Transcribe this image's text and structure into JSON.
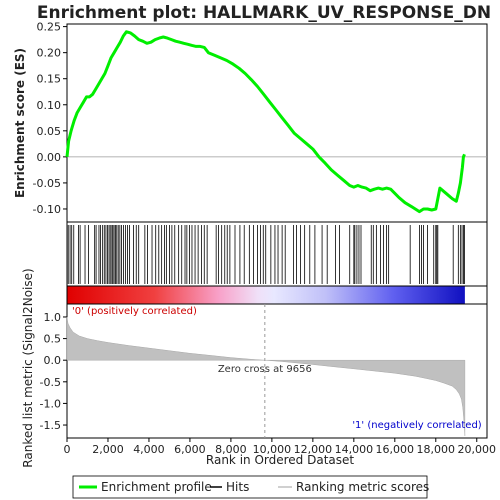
{
  "chart_data": {
    "type": "line",
    "title": "Enrichment plot: HALLMARK_UV_RESPONSE_DN",
    "top_panel": {
      "ylabel": "Enrichment score (ES)",
      "ylim": [
        -0.125,
        0.255
      ],
      "yticks": [
        -0.1,
        -0.05,
        0.0,
        0.05,
        0.1,
        0.15,
        0.2,
        0.25
      ],
      "ytick_labels": [
        "-0.10",
        "-0.05",
        "0.00",
        "0.05",
        "0.10",
        "0.15",
        "0.20",
        "0.25"
      ],
      "series": [
        {
          "name": "Enrichment profile",
          "color": "#00ee00",
          "x": [
            0,
            80,
            200,
            350,
            500,
            650,
            800,
            950,
            1100,
            1250,
            1400,
            1550,
            1700,
            1850,
            2000,
            2150,
            2300,
            2450,
            2600,
            2750,
            2900,
            3100,
            3300,
            3500,
            3700,
            3900,
            4100,
            4300,
            4500,
            4700,
            4900,
            5100,
            5300,
            5500,
            5700,
            5900,
            6100,
            6300,
            6500,
            6700,
            6900,
            7200,
            7500,
            7800,
            8100,
            8400,
            8700,
            9000,
            9300,
            9600,
            9900,
            10200,
            10500,
            10800,
            11100,
            11400,
            11700,
            12000,
            12300,
            12600,
            12900,
            13200,
            13500,
            13800,
            14000,
            14200,
            14400,
            14600,
            14800,
            15000,
            15200,
            15400,
            15600,
            15800,
            16000,
            16200,
            16500,
            16800,
            17000,
            17200,
            17400,
            17600,
            17800,
            18000,
            18200,
            18500,
            18800,
            19000,
            19100,
            19200,
            19300,
            19350,
            19400
          ],
          "y": [
            0.0,
            0.03,
            0.05,
            0.07,
            0.085,
            0.095,
            0.105,
            0.115,
            0.115,
            0.12,
            0.13,
            0.14,
            0.15,
            0.16,
            0.175,
            0.19,
            0.2,
            0.21,
            0.22,
            0.232,
            0.24,
            0.238,
            0.232,
            0.225,
            0.222,
            0.218,
            0.22,
            0.225,
            0.228,
            0.23,
            0.228,
            0.225,
            0.222,
            0.22,
            0.218,
            0.216,
            0.214,
            0.212,
            0.212,
            0.21,
            0.2,
            0.195,
            0.19,
            0.185,
            0.178,
            0.17,
            0.16,
            0.148,
            0.135,
            0.12,
            0.105,
            0.09,
            0.075,
            0.06,
            0.045,
            0.035,
            0.025,
            0.015,
            0.0,
            -0.012,
            -0.025,
            -0.035,
            -0.045,
            -0.055,
            -0.058,
            -0.055,
            -0.058,
            -0.06,
            -0.065,
            -0.062,
            -0.06,
            -0.062,
            -0.06,
            -0.062,
            -0.07,
            -0.078,
            -0.088,
            -0.095,
            -0.1,
            -0.105,
            -0.1,
            -0.1,
            -0.102,
            -0.1,
            -0.06,
            -0.07,
            -0.08,
            -0.085,
            -0.07,
            -0.05,
            -0.02,
            0.0,
            0.005
          ]
        }
      ]
    },
    "hits_panel": {
      "legend_name": "Hits",
      "hit_positions": [
        60,
        150,
        230,
        330,
        560,
        640,
        880,
        1050,
        1350,
        1420,
        1560,
        1640,
        1740,
        1820,
        1900,
        1980,
        2050,
        2110,
        2190,
        2240,
        2300,
        2370,
        2430,
        2500,
        2580,
        2660,
        2760,
        2850,
        2950,
        3050,
        3250,
        3380,
        3500,
        3800,
        3930,
        4150,
        4330,
        4480,
        4620,
        4760,
        4850,
        5000,
        5120,
        5260,
        5450,
        5600,
        5760,
        5850,
        5980,
        6100,
        6250,
        6400,
        6560,
        6700,
        6840,
        7280,
        7400,
        7550,
        7700,
        7820,
        7950,
        8200,
        8440,
        8650,
        8900,
        9100,
        9300,
        9450,
        9580,
        9700,
        9950,
        10150,
        10300,
        10500,
        10650,
        11050,
        11200,
        11400,
        11600,
        11850,
        12100,
        12450,
        12700,
        13100,
        13300,
        13800,
        14000,
        14050,
        14150,
        14250,
        14350,
        14850,
        14950,
        15100,
        15300,
        15450,
        15600,
        15700,
        16750,
        17200,
        17300,
        17400,
        17600,
        17900,
        18000,
        18050,
        18100,
        18850,
        19100,
        19200,
        19280,
        19350,
        19400
      ]
    },
    "ranking_panel": {
      "ylabel": "Ranked list metric (Signal2Noise)",
      "legend_name": "Ranking metric scores",
      "ylim": [
        -1.8,
        1.3
      ],
      "yticks": [
        -1.5,
        -1.0,
        -0.5,
        0.0,
        0.5,
        1.0
      ],
      "ytick_labels": [
        "-1.5",
        "-1.0",
        "-0.5",
        "0.0",
        "0.5",
        "1.0"
      ],
      "metric_profile": {
        "x": [
          0,
          50,
          150,
          300,
          600,
          1000,
          1500,
          2000,
          3000,
          4000,
          5000,
          6000,
          7000,
          8000,
          9000,
          9656,
          10500,
          12000,
          13000,
          14000,
          15000,
          16000,
          17000,
          17500,
          18000,
          18400,
          18800,
          19000,
          19150,
          19250,
          19320,
          19380,
          19420
        ],
        "y": [
          1.0,
          0.85,
          0.75,
          0.65,
          0.56,
          0.5,
          0.45,
          0.41,
          0.34,
          0.28,
          0.22,
          0.16,
          0.11,
          0.06,
          0.02,
          0.0,
          -0.03,
          -0.1,
          -0.15,
          -0.2,
          -0.25,
          -0.3,
          -0.37,
          -0.42,
          -0.47,
          -0.53,
          -0.6,
          -0.68,
          -0.78,
          -0.9,
          -1.1,
          -1.45,
          -1.75
        ]
      },
      "zero_cross_label": "Zero cross at 9656",
      "zero_cross_x": 9656,
      "pos_label": "'0' (positively correlated)",
      "neg_label": "'1' (negatively correlated)",
      "pos_color": "#cc0000",
      "neg_color": "#0000cc"
    },
    "xlabel": "Rank in Ordered Dataset",
    "xlim": [
      0,
      20500
    ],
    "xticks": [
      0,
      2000,
      4000,
      6000,
      8000,
      10000,
      12000,
      14000,
      16000,
      18000,
      20000
    ],
    "xtick_labels": [
      "0",
      "2,000",
      "4,000",
      "6,000",
      "8,000",
      "10,000",
      "12,000",
      "14,000",
      "16,000",
      "18,000",
      "20,000"
    ],
    "dataset_size": 19420,
    "grid": false,
    "legend_placement": "bottom",
    "legend": [
      {
        "label": "Enrichment profile",
        "color": "#00ee00"
      },
      {
        "label": "Hits",
        "color": "#000000"
      },
      {
        "label": "Ranking metric scores",
        "color": "#c0c0c0"
      }
    ]
  }
}
